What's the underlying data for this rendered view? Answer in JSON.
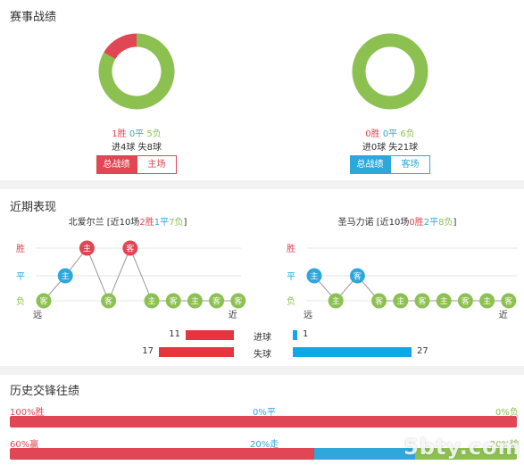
{
  "colors": {
    "win": "#e04653",
    "draw": "#2fa7db",
    "loss": "#8cc151",
    "grid": "#e6e6e6"
  },
  "section1": {
    "title": "赛事战绩",
    "left": {
      "win_text": "1胜",
      "draw_text": "0平",
      "loss_text": "5负",
      "goals_text": "进4球 失8球",
      "btn_active": "总战绩",
      "btn_other": "主场",
      "donut": {
        "win": 1,
        "draw": 0,
        "loss": 5
      }
    },
    "right": {
      "win_text": "0胜",
      "draw_text": "0平",
      "loss_text": "6负",
      "goals_text": "进0球 失21球",
      "btn_active": "总战绩",
      "btn_other": "客场",
      "donut": {
        "win": 0,
        "draw": 0,
        "loss": 6
      }
    }
  },
  "section2": {
    "title": "近期表现",
    "left": {
      "team": "北爱尔兰",
      "summary_prefix": " [近10场",
      "summary_win": "2胜",
      "summary_draw": "1平",
      "summary_loss": "7负",
      "summary_suffix": "]",
      "labels": {
        "win": "胜",
        "draw": "平",
        "loss": "负",
        "far": "远",
        "near": "近"
      },
      "results": [
        {
          "venue": "客",
          "result": "负"
        },
        {
          "venue": "主",
          "result": "平"
        },
        {
          "venue": "主",
          "result": "胜"
        },
        {
          "venue": "客",
          "result": "负"
        },
        {
          "venue": "客",
          "result": "胜"
        },
        {
          "venue": "主",
          "result": "负"
        },
        {
          "venue": "客",
          "result": "负"
        },
        {
          "venue": "主",
          "result": "负"
        },
        {
          "venue": "客",
          "result": "负"
        },
        {
          "venue": "客",
          "result": "负"
        }
      ]
    },
    "right": {
      "team": "圣马力诺",
      "summary_prefix": " [近10场",
      "summary_win": "0胜",
      "summary_draw": "2平",
      "summary_loss": "8负",
      "summary_suffix": "]",
      "labels": {
        "win": "胜",
        "draw": "平",
        "loss": "负",
        "far": "远",
        "near": "近"
      },
      "results": [
        {
          "venue": "主",
          "result": "平"
        },
        {
          "venue": "主",
          "result": "负"
        },
        {
          "venue": "客",
          "result": "平"
        },
        {
          "venue": "客",
          "result": "负"
        },
        {
          "venue": "主",
          "result": "负"
        },
        {
          "venue": "客",
          "result": "负"
        },
        {
          "venue": "主",
          "result": "负"
        },
        {
          "venue": "客",
          "result": "负"
        },
        {
          "venue": "主",
          "result": "负"
        },
        {
          "venue": "客",
          "result": "负"
        }
      ]
    },
    "goals": {
      "scored_label": "进球",
      "conceded_label": "失球",
      "home_scored": 11,
      "away_scored": 1,
      "home_conceded": 17,
      "away_conceded": 27
    }
  },
  "section3": {
    "title": "历史交锋往绩",
    "row1": {
      "left": "100%胜",
      "mid": "0%平",
      "right": "0%负",
      "win": 100,
      "draw": 0,
      "loss": 0
    },
    "row2": {
      "left": "60%赢",
      "mid": "20%走",
      "right": "20%输",
      "win": 60,
      "draw": 20,
      "loss": 20
    }
  },
  "watermark": "5bty.com"
}
